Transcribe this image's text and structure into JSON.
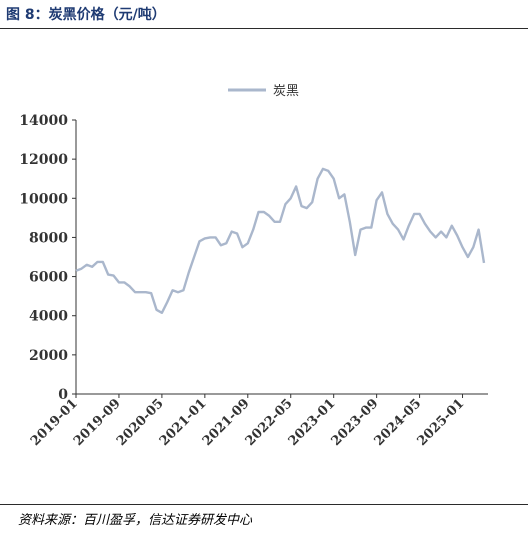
{
  "figure": {
    "title": "图 8：炭黑价格（元/吨）",
    "source": "资料来源：百川盈孚，信达证券研发中心"
  },
  "colors": {
    "series": "#aab7cc",
    "title": "#1f3b73",
    "axis": "#333333"
  },
  "chart_data": {
    "type": "line",
    "title": "",
    "xlabel": "",
    "ylabel": "",
    "ylim": [
      0,
      14000
    ],
    "yticks": [
      0,
      2000,
      4000,
      6000,
      8000,
      10000,
      12000,
      14000
    ],
    "xlim": [
      "2019-01",
      "2025-05"
    ],
    "xticks": [
      "2019-01",
      "2019-09",
      "2020-05",
      "2021-01",
      "2021-09",
      "2022-05",
      "2023-01",
      "2023-09",
      "2024-05",
      "2025-01"
    ],
    "legend": "top-center",
    "grid": false,
    "series": [
      {
        "name": "炭黑",
        "points": [
          [
            "2019-01",
            6300
          ],
          [
            "2019-02",
            6400
          ],
          [
            "2019-03",
            6600
          ],
          [
            "2019-04",
            6500
          ],
          [
            "2019-05",
            6750
          ],
          [
            "2019-06",
            6750
          ],
          [
            "2019-07",
            6100
          ],
          [
            "2019-08",
            6050
          ],
          [
            "2019-09",
            5700
          ],
          [
            "2019-10",
            5700
          ],
          [
            "2019-11",
            5500
          ],
          [
            "2019-12",
            5200
          ],
          [
            "2020-01",
            5200
          ],
          [
            "2020-02",
            5200
          ],
          [
            "2020-03",
            5150
          ],
          [
            "2020-04",
            4300
          ],
          [
            "2020-05",
            4150
          ],
          [
            "2020-06",
            4700
          ],
          [
            "2020-07",
            5300
          ],
          [
            "2020-08",
            5200
          ],
          [
            "2020-09",
            5300
          ],
          [
            "2020-10",
            6200
          ],
          [
            "2020-11",
            7000
          ],
          [
            "2020-12",
            7800
          ],
          [
            "2021-01",
            7950
          ],
          [
            "2021-02",
            8000
          ],
          [
            "2021-03",
            8000
          ],
          [
            "2021-04",
            7600
          ],
          [
            "2021-05",
            7700
          ],
          [
            "2021-06",
            8300
          ],
          [
            "2021-07",
            8200
          ],
          [
            "2021-08",
            7500
          ],
          [
            "2021-09",
            7700
          ],
          [
            "2021-10",
            8400
          ],
          [
            "2021-11",
            9300
          ],
          [
            "2021-12",
            9300
          ],
          [
            "2022-01",
            9100
          ],
          [
            "2022-02",
            8800
          ],
          [
            "2022-03",
            8800
          ],
          [
            "2022-04",
            9700
          ],
          [
            "2022-05",
            10000
          ],
          [
            "2022-06",
            10600
          ],
          [
            "2022-07",
            9600
          ],
          [
            "2022-08",
            9500
          ],
          [
            "2022-09",
            9800
          ],
          [
            "2022-10",
            11000
          ],
          [
            "2022-11",
            11500
          ],
          [
            "2022-12",
            11400
          ],
          [
            "2023-01",
            11000
          ],
          [
            "2023-02",
            10000
          ],
          [
            "2023-03",
            10200
          ],
          [
            "2023-04",
            8800
          ],
          [
            "2023-05",
            7100
          ],
          [
            "2023-06",
            8400
          ],
          [
            "2023-07",
            8500
          ],
          [
            "2023-08",
            8500
          ],
          [
            "2023-09",
            9900
          ],
          [
            "2023-10",
            10300
          ],
          [
            "2023-11",
            9200
          ],
          [
            "2023-12",
            8700
          ],
          [
            "2024-01",
            8400
          ],
          [
            "2024-02",
            7900
          ],
          [
            "2024-03",
            8600
          ],
          [
            "2024-04",
            9200
          ],
          [
            "2024-05",
            9200
          ],
          [
            "2024-06",
            8700
          ],
          [
            "2024-07",
            8300
          ],
          [
            "2024-08",
            8000
          ],
          [
            "2024-09",
            8300
          ],
          [
            "2024-10",
            8000
          ],
          [
            "2024-11",
            8600
          ],
          [
            "2024-12",
            8100
          ],
          [
            "2025-01",
            7500
          ],
          [
            "2025-02",
            7000
          ],
          [
            "2025-03",
            7500
          ],
          [
            "2025-04",
            8400
          ],
          [
            "2025-05",
            6700
          ]
        ]
      }
    ]
  }
}
